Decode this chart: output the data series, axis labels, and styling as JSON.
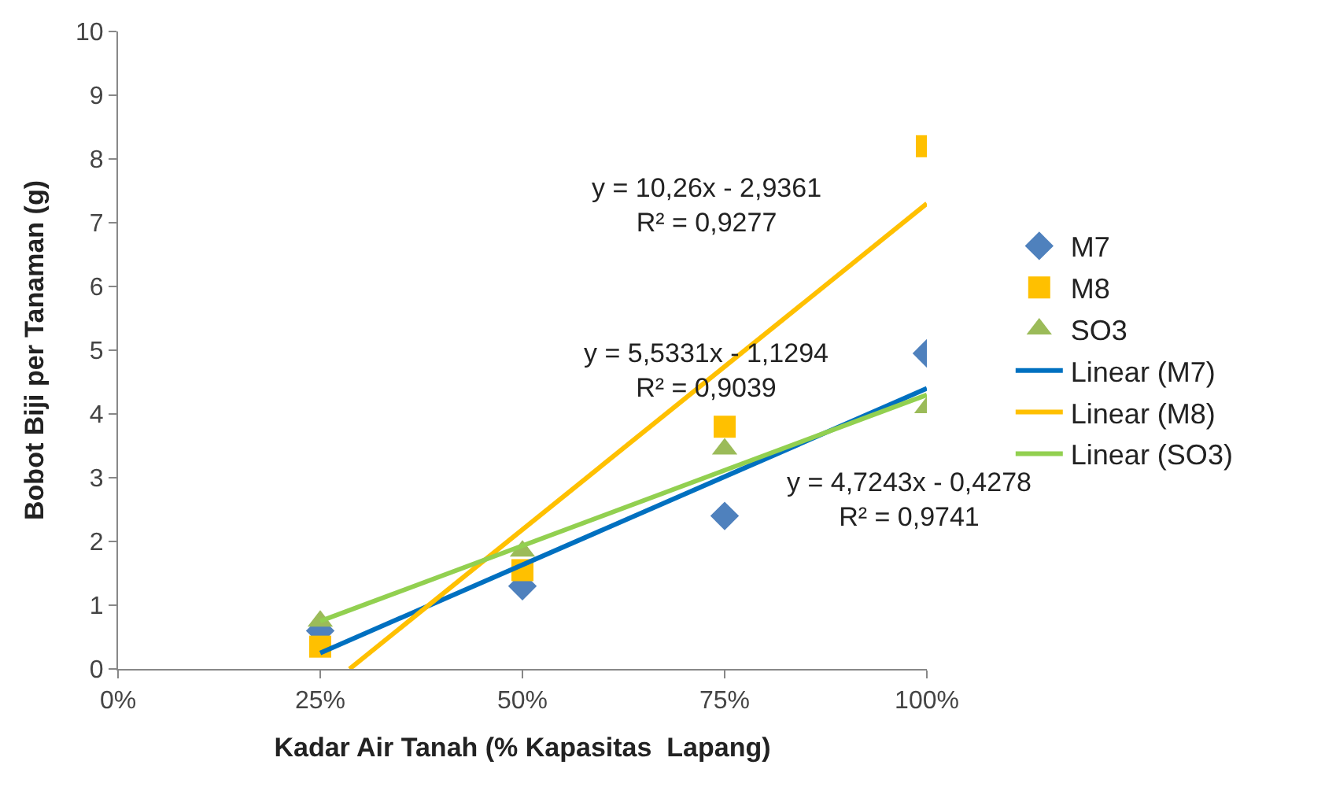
{
  "chart_data": {
    "type": "scatter",
    "xlabel": "Kadar Air Tanah (% Kapasitas  Lapang)",
    "ylabel": "Bobot Biji per Tanaman (g)",
    "x": [
      0.25,
      0.5,
      0.75,
      1.0
    ],
    "xlim": [
      0,
      1
    ],
    "xticks": [
      {
        "value": 0,
        "label": "0%"
      },
      {
        "value": 0.25,
        "label": "25%"
      },
      {
        "value": 0.5,
        "label": "50%"
      },
      {
        "value": 0.75,
        "label": "75%"
      },
      {
        "value": 1.0,
        "label": "100%"
      }
    ],
    "ylim": [
      0,
      10
    ],
    "yticks": [
      0,
      1,
      2,
      3,
      4,
      5,
      6,
      7,
      8,
      9,
      10
    ],
    "legend": "right",
    "series": [
      {
        "name": "M7",
        "marker": "diamond",
        "color": "#4f81bd",
        "values": [
          0.6,
          1.3,
          2.4,
          4.95
        ]
      },
      {
        "name": "M8",
        "marker": "square",
        "color": "#ffc000",
        "values": [
          0.35,
          1.55,
          3.8,
          8.2
        ]
      },
      {
        "name": "SO3",
        "marker": "triangle",
        "color": "#9bbb59",
        "values": [
          0.75,
          1.85,
          3.45,
          4.1
        ]
      },
      {
        "name": "Linear (M7)",
        "type": "line",
        "color": "#0070c0",
        "x": [
          0.25,
          1.0
        ],
        "values": [
          0.25,
          4.4
        ]
      },
      {
        "name": "Linear (M8)",
        "type": "line",
        "color": "#ffc000",
        "x": [
          0.2862,
          1.0
        ],
        "values": [
          0,
          7.3
        ]
      },
      {
        "name": "Linear (SO3)",
        "type": "line",
        "color": "#92d050",
        "x": [
          0.25,
          1.0
        ],
        "values": [
          0.75,
          4.3
        ]
      }
    ],
    "annotations": [
      "y = 10,26x - 2,9361\nR² = 0,9277",
      "y = 5,5331x - 1,1294\nR² = 0,9039",
      "y = 4,7243x - 0,4278\nR² = 0,9741"
    ]
  }
}
